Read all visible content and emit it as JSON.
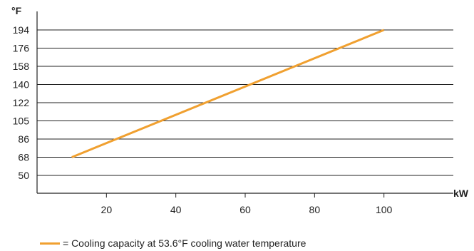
{
  "chart_data": {
    "type": "line",
    "x_unit": "kW",
    "y_unit": "°F",
    "x_ticks": [
      "20",
      "40",
      "60",
      "80",
      "100"
    ],
    "x_tick_values": [
      20,
      40,
      60,
      80,
      100
    ],
    "y_ticks": [
      "194",
      "176",
      "158",
      "140",
      "122",
      "105",
      "86",
      "68",
      "50"
    ],
    "xlim": [
      0,
      120
    ],
    "grid": "horizontal",
    "series": [
      {
        "name": "Cooling capacity at 53.6°F cooling water temperature",
        "color": "#f0a030",
        "x": [
          10,
          100
        ],
        "y": [
          68,
          194
        ]
      }
    ]
  },
  "legend": {
    "text": "= Cooling capacity at 53.6°F cooling water temperature",
    "color": "#f0a030"
  }
}
